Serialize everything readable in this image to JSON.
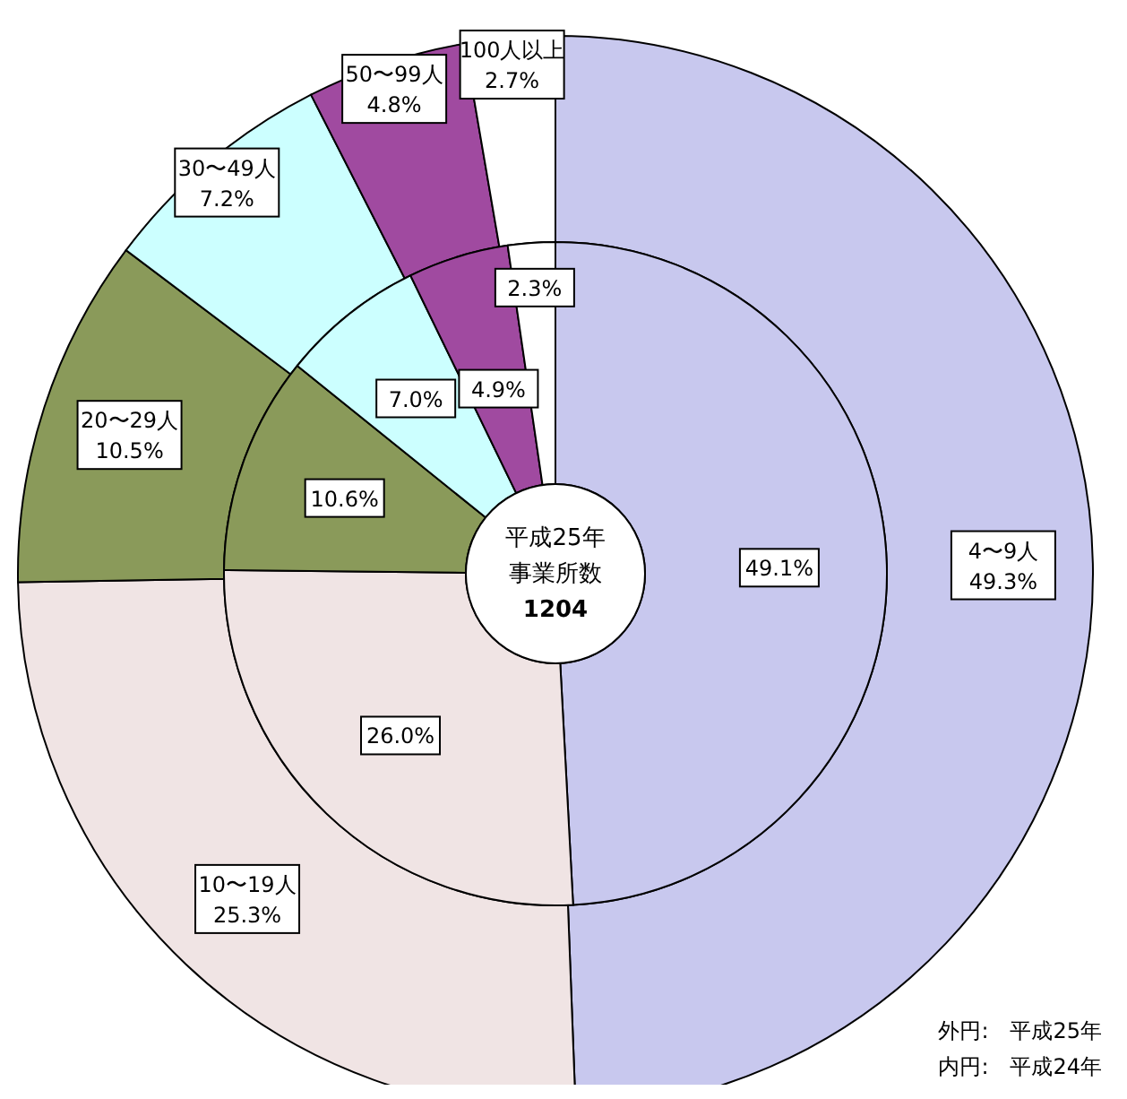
{
  "chart_data": {
    "type": "donut",
    "categories": [
      "4〜9人",
      "10〜19人",
      "20〜29人",
      "30〜49人",
      "50〜99人",
      "100人以上"
    ],
    "colors": [
      "#c8c8ee",
      "#f0e4e4",
      "#8a9a5a",
      "#ccffff",
      "#a04aa0",
      "#ffffff"
    ],
    "series": [
      {
        "values": [
          49.3,
          25.3,
          10.5,
          7.2,
          4.8,
          2.7
        ],
        "value_labels": [
          "49.3%",
          "25.3%",
          "10.5%",
          "7.2%",
          "4.8%",
          "2.7%"
        ]
      },
      {
        "values": [
          49.1,
          26.0,
          10.6,
          7.0,
          4.9,
          2.3
        ],
        "value_labels": [
          "49.1%",
          "26.0%",
          "10.6%",
          "7.0%",
          "4.9%",
          "2.3%"
        ]
      }
    ],
    "annotations": [
      "平成25年",
      "事業所数",
      "1204",
      "外円:　平成25年",
      "内円:　平成24年"
    ]
  }
}
